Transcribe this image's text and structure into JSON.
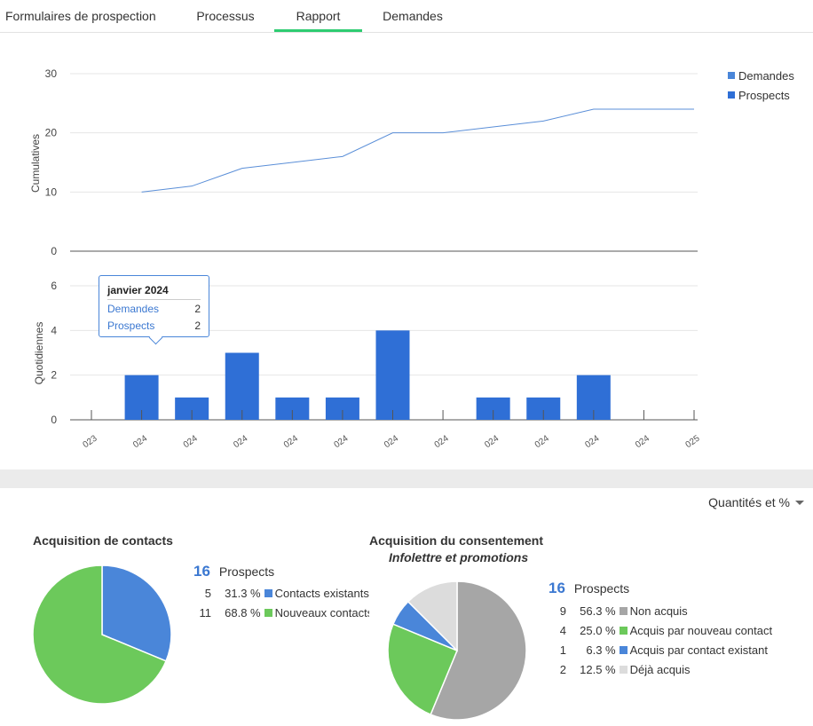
{
  "tabs": [
    {
      "label": "Formulaires de prospection",
      "active": false
    },
    {
      "label": "Processus",
      "active": false
    },
    {
      "label": "Rapport",
      "active": true
    },
    {
      "label": "Demandes",
      "active": false
    }
  ],
  "colors": {
    "accent": "#2ecc71",
    "blue": "#4a86d9",
    "bar": "#2f6fd6",
    "green": "#6cc95b",
    "gray": "#a6a6a6",
    "light": "#dcdcdc"
  },
  "report": {
    "legend": [
      {
        "label": "Demandes",
        "color": "#4a86d9"
      },
      {
        "label": "Prospects",
        "color": "#2f6fd6"
      }
    ],
    "tooltip": {
      "title": "janvier 2024",
      "rows": [
        {
          "label": "Demandes",
          "value": "2"
        },
        {
          "label": "Prospects",
          "value": "2"
        }
      ]
    }
  },
  "chart_data": [
    {
      "type": "line",
      "ylabel": "Cumulatives",
      "yticks": [
        "0",
        "10",
        "20",
        "30"
      ],
      "ylim": [
        0,
        30
      ],
      "grid": true,
      "x_index": [
        1,
        2,
        3,
        4,
        5,
        6,
        7,
        8,
        9,
        10,
        11,
        12
      ],
      "series": [
        {
          "name": "Prospects",
          "values": [
            10,
            11,
            14,
            15,
            16,
            20,
            20,
            21,
            22,
            24,
            24,
            24
          ]
        }
      ]
    },
    {
      "type": "bar",
      "ylabel": "Quotidiennes",
      "yticks": [
        "0",
        "2",
        "4",
        "6"
      ],
      "ylim": [
        0,
        6
      ],
      "grid": true,
      "xtick_labels": [
        "023",
        "024",
        "024",
        "024",
        "024",
        "024",
        "024",
        "024",
        "024",
        "024",
        "024",
        "024",
        "025"
      ],
      "series": [
        {
          "name": "Prospects",
          "values": [
            0,
            2,
            1,
            3,
            1,
            1,
            4,
            0,
            1,
            1,
            2,
            0,
            0
          ]
        }
      ]
    },
    {
      "type": "pie",
      "title": "Acquisition de contacts",
      "total": {
        "value": "16",
        "label": "Prospects"
      },
      "slices": [
        {
          "label": "Contacts existants",
          "count": "5",
          "pct": "31.3 %",
          "value": 5,
          "color": "#4a86d9"
        },
        {
          "label": "Nouveaux contacts",
          "count": "11",
          "pct": "68.8 %",
          "value": 11,
          "color": "#6cc95b"
        }
      ]
    },
    {
      "type": "pie",
      "title": "Acquisition du consentement",
      "subtitle": "Infolettre et promotions",
      "total": {
        "value": "16",
        "label": "Prospects"
      },
      "slices": [
        {
          "label": "Non acquis",
          "count": "9",
          "pct": "56.3 %",
          "value": 9,
          "color": "#a6a6a6"
        },
        {
          "label": "Acquis par nouveau contact",
          "count": "4",
          "pct": "25.0 %",
          "value": 4,
          "color": "#6cc95b"
        },
        {
          "label": "Acquis par contact existant",
          "count": "1",
          "pct": "6.3 %",
          "value": 1,
          "color": "#4a86d9"
        },
        {
          "label": "Déjà acquis",
          "count": "2",
          "pct": "12.5 %",
          "value": 2,
          "color": "#dcdcdc"
        }
      ]
    }
  ],
  "display_mode": "Quantités et %"
}
